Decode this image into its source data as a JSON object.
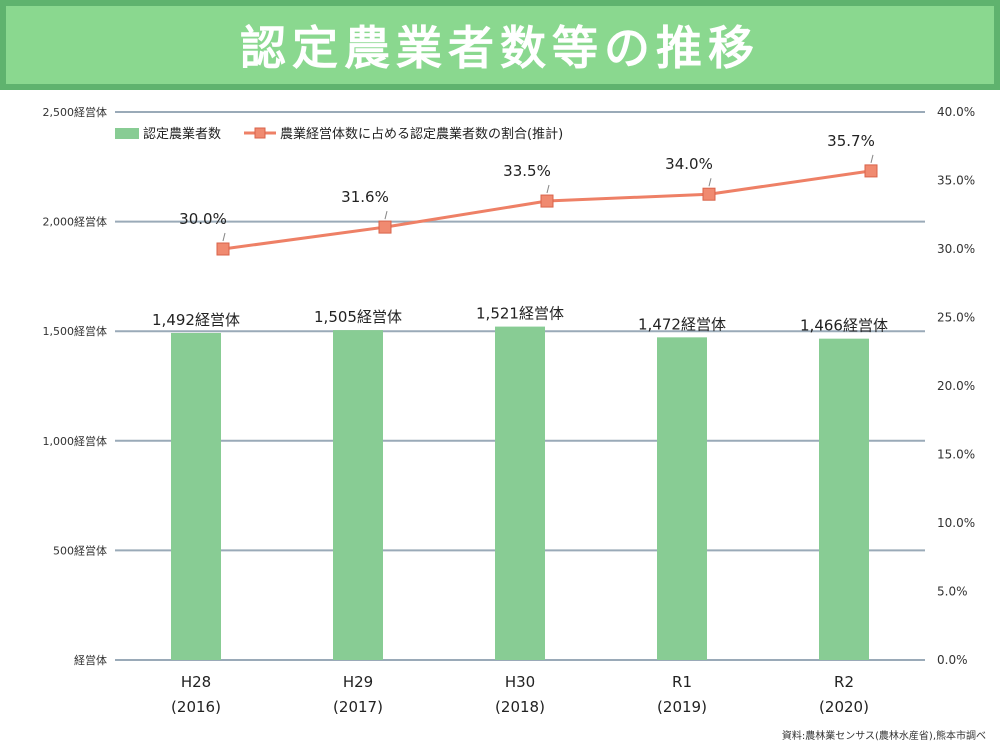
{
  "title": "認定農業者数等の推移",
  "source": "資料:農林業センサス(農林水産省),熊本市調べ",
  "colors": {
    "bar": "#88cc94",
    "line": "#ee8066",
    "marker": "#f08a70",
    "grid": "#9aaab8",
    "title_bg": "#8ad88f",
    "title_border": "#5fb36e"
  },
  "chart_data": {
    "type": "bar+line",
    "categories": [
      "H28",
      "H29",
      "H30",
      "R1",
      "R2"
    ],
    "category_years": [
      "(2016)",
      "(2017)",
      "(2018)",
      "(2019)",
      "(2020)"
    ],
    "series": [
      {
        "name": "認定農業者数",
        "type": "bar",
        "axis": "left",
        "values": [
          1492,
          1505,
          1521,
          1472,
          1466
        ],
        "labels": [
          "1,492経営体",
          "1,505経営体",
          "1,521経営体",
          "1,472経営体",
          "1,466経営体"
        ]
      },
      {
        "name": "農業経営体数に占める認定農業者数の割合(推計)",
        "type": "line",
        "axis": "right",
        "values": [
          30.0,
          31.6,
          33.5,
          34.0,
          35.7
        ],
        "labels": [
          "30.0%",
          "31.6%",
          "33.5%",
          "34.0%",
          "35.7%"
        ]
      }
    ],
    "y_left": {
      "min": 0,
      "max": 2500,
      "ticks": [
        0,
        500,
        1000,
        1500,
        2000,
        2500
      ],
      "tick_labels": [
        "経営体",
        "500経営体",
        "1,000経営体",
        "1,500経営体",
        "2,000経営体",
        "2,500経営体"
      ]
    },
    "y_right": {
      "min": 0,
      "max": 40,
      "ticks": [
        0,
        5,
        10,
        15,
        20,
        25,
        30,
        35,
        40
      ],
      "tick_labels": [
        "0.0%",
        "5.0%",
        "10.0%",
        "15.0%",
        "20.0%",
        "25.0%",
        "30.0%",
        "35.0%",
        "40.0%"
      ]
    },
    "legend_position": "top-left",
    "grid": true
  }
}
